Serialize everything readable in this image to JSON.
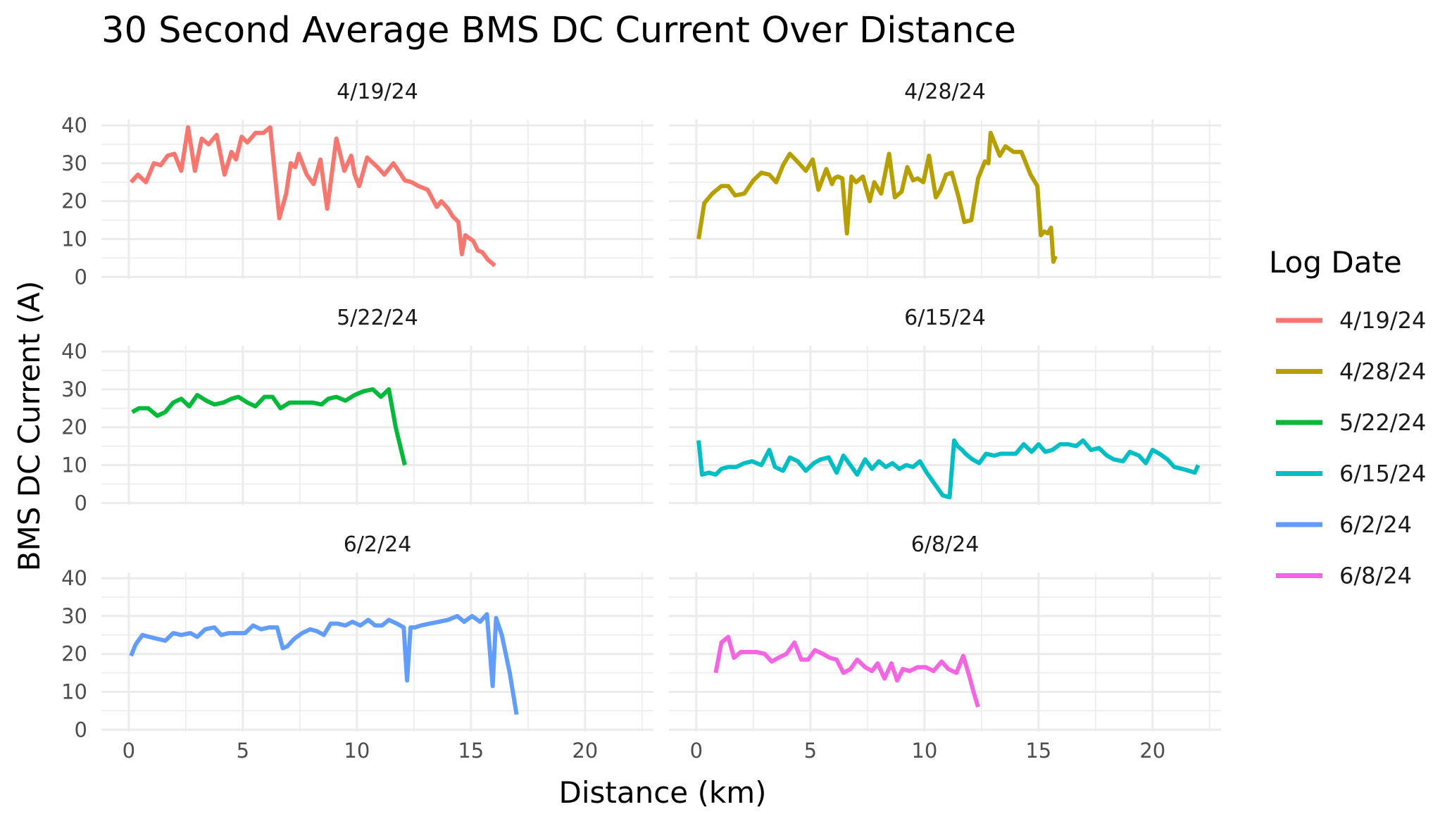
{
  "chart_data": {
    "type": "line",
    "title": "30 Second Average BMS DC Current Over Distance",
    "xlabel": "Distance (km)",
    "ylabel": "BMS DC Current (A)",
    "xlim": [
      -1.2,
      23
    ],
    "ylim": [
      -0.5,
      41.5
    ],
    "x_ticks": [
      0,
      5,
      10,
      15,
      20
    ],
    "y_ticks": [
      0,
      10,
      20,
      30,
      40
    ],
    "grid": true,
    "facet_layout": "3 rows x 2 columns",
    "legend": {
      "title": "Log Date",
      "position": "right"
    },
    "series": [
      {
        "name": "4/19/24",
        "color": "#F8766D",
        "x": [
          0.1,
          0.4,
          0.75,
          1.1,
          1.4,
          1.7,
          2.0,
          2.3,
          2.6,
          2.9,
          3.2,
          3.5,
          3.85,
          4.2,
          4.5,
          4.7,
          4.95,
          5.2,
          5.55,
          5.9,
          6.2,
          6.6,
          6.9,
          7.1,
          7.3,
          7.45,
          7.8,
          8.1,
          8.4,
          8.7,
          9.1,
          9.45,
          9.75,
          9.9,
          10.1,
          10.45,
          10.9,
          11.2,
          11.6,
          12.1,
          12.4,
          12.7,
          13.1,
          13.5,
          13.7,
          14.0,
          14.2,
          14.45,
          14.6,
          14.75,
          15.1,
          15.3,
          15.5,
          15.75,
          16.05
        ],
        "y": [
          25,
          27,
          25,
          30,
          29.5,
          32,
          32.5,
          28,
          39.5,
          28,
          36.5,
          35,
          37.5,
          27,
          33,
          31,
          37,
          35.5,
          38,
          38,
          39.5,
          15.5,
          22,
          30,
          29,
          32.5,
          27,
          24.5,
          31,
          18,
          36.5,
          28,
          32,
          27,
          24,
          31.5,
          29,
          27,
          30,
          25.5,
          25,
          24,
          23,
          18.5,
          20,
          18,
          16,
          14.5,
          6,
          11,
          9.5,
          7,
          6.5,
          4.5,
          3
        ]
      },
      {
        "name": "4/28/24",
        "color": "#B79F00",
        "x": [
          0.1,
          0.35,
          0.7,
          1.1,
          1.4,
          1.7,
          2.1,
          2.5,
          2.85,
          3.2,
          3.5,
          3.8,
          4.1,
          4.5,
          4.8,
          4.95,
          5.1,
          5.35,
          5.7,
          5.95,
          6.05,
          6.2,
          6.4,
          6.6,
          6.8,
          7.0,
          7.3,
          7.6,
          7.8,
          8.1,
          8.45,
          8.7,
          9.0,
          9.25,
          9.5,
          9.7,
          9.95,
          10.2,
          10.5,
          10.7,
          10.95,
          11.2,
          11.5,
          11.75,
          12.05,
          12.35,
          12.65,
          12.8,
          12.9,
          13.3,
          13.55,
          13.9,
          14.25,
          14.65,
          14.95,
          15.1,
          15.25,
          15.4,
          15.55,
          15.65,
          15.75
        ],
        "y": [
          10,
          19.5,
          22,
          24,
          24,
          21.5,
          22,
          25.5,
          27.5,
          27,
          25,
          29.5,
          32.5,
          30,
          28,
          29.5,
          31,
          23,
          28.5,
          24.5,
          26,
          26.5,
          26,
          11.5,
          26.5,
          25,
          26.5,
          20,
          25,
          22,
          32.5,
          21,
          22.5,
          29,
          25.5,
          26,
          25,
          32,
          21,
          23,
          27,
          27.5,
          21,
          14.5,
          15,
          26,
          30.5,
          30,
          38,
          32,
          34.5,
          33,
          33,
          27,
          24,
          11,
          12,
          11.5,
          13,
          4,
          5.5
        ]
      },
      {
        "name": "5/22/24",
        "color": "#00BA38",
        "x": [
          0.15,
          0.45,
          0.85,
          1.25,
          1.6,
          1.95,
          2.3,
          2.65,
          3.0,
          3.4,
          3.75,
          4.15,
          4.5,
          4.8,
          5.2,
          5.55,
          5.95,
          6.3,
          6.65,
          7.05,
          7.4,
          7.7,
          8.05,
          8.45,
          8.75,
          9.1,
          9.5,
          9.9,
          10.3,
          10.7,
          11.05,
          11.4,
          11.7,
          11.9,
          12.1
        ],
        "y": [
          24,
          25,
          25,
          23,
          24,
          26.5,
          27.5,
          25.5,
          28.5,
          27,
          26,
          26.5,
          27.5,
          28,
          26.5,
          25.5,
          28,
          28,
          25,
          26.5,
          26.5,
          26.5,
          26.5,
          26,
          27.5,
          28,
          27,
          28.5,
          29.5,
          30,
          28,
          30,
          20,
          15,
          10
        ]
      },
      {
        "name": "6/15/24",
        "color": "#00BFC4",
        "x": [
          0.1,
          0.25,
          0.55,
          0.85,
          1.1,
          1.4,
          1.75,
          2.1,
          2.45,
          2.85,
          3.2,
          3.45,
          3.8,
          4.1,
          4.45,
          4.8,
          5.15,
          5.45,
          5.8,
          6.15,
          6.45,
          6.75,
          7.05,
          7.4,
          7.7,
          8.0,
          8.3,
          8.6,
          8.9,
          9.2,
          9.5,
          9.8,
          10.1,
          10.45,
          10.8,
          11.1,
          11.3,
          11.45,
          11.55,
          11.65,
          11.8,
          12.1,
          12.4,
          12.7,
          13.05,
          13.35,
          13.7,
          14.0,
          14.35,
          14.7,
          15.0,
          15.3,
          15.6,
          15.95,
          16.3,
          16.65,
          16.95,
          17.3,
          17.65,
          18.0,
          18.3,
          18.7,
          19.0,
          19.4,
          19.7,
          20.0,
          20.3,
          20.65,
          20.95,
          21.3,
          21.6,
          21.85,
          22.0
        ],
        "y": [
          16.5,
          7.5,
          8,
          7.5,
          9,
          9.5,
          9.5,
          10.5,
          11,
          10,
          14,
          9.5,
          8.5,
          12,
          11,
          8.5,
          10.5,
          11.5,
          12,
          8,
          12.5,
          10,
          7.5,
          11.5,
          9,
          11,
          9.5,
          10.5,
          9,
          10,
          9.5,
          11,
          8,
          5,
          2,
          1.5,
          16.5,
          15,
          14.5,
          14,
          13,
          11.5,
          10.5,
          13,
          12.5,
          13,
          13,
          13,
          15.5,
          13.5,
          15.5,
          13.5,
          14,
          15.5,
          15.5,
          15,
          16.5,
          14,
          14.5,
          12.5,
          11.5,
          11,
          13.5,
          12.5,
          10.5,
          14,
          13,
          11.5,
          9.5,
          9,
          8.5,
          8,
          10
        ]
      },
      {
        "name": "6/2/24",
        "color": "#619CFF",
        "x": [
          0.1,
          0.3,
          0.6,
          0.9,
          1.25,
          1.6,
          1.95,
          2.3,
          2.7,
          3.0,
          3.35,
          3.75,
          4.05,
          4.4,
          4.75,
          5.1,
          5.45,
          5.8,
          6.15,
          6.5,
          6.75,
          6.95,
          7.25,
          7.6,
          7.95,
          8.25,
          8.55,
          8.85,
          9.15,
          9.5,
          9.8,
          10.15,
          10.5,
          10.8,
          11.1,
          11.4,
          11.75,
          12.05,
          12.2,
          12.35,
          12.55,
          12.8,
          13.2,
          13.6,
          14.0,
          14.4,
          14.7,
          15.05,
          15.4,
          15.7,
          15.95,
          16.1,
          16.35,
          16.7,
          17.0
        ],
        "y": [
          19.5,
          22.5,
          25,
          24.5,
          24,
          23.5,
          25.5,
          25,
          25.5,
          24.5,
          26.5,
          27,
          25,
          25.5,
          25.5,
          25.5,
          27.5,
          26.5,
          27,
          27,
          21.5,
          22,
          24,
          25.5,
          26.5,
          26,
          25,
          28,
          28,
          27.5,
          28.5,
          27.5,
          29,
          27.5,
          27.5,
          29,
          28,
          27,
          13,
          27,
          27,
          27.5,
          28,
          28.5,
          29,
          30,
          28.5,
          30,
          28.5,
          30.5,
          11.5,
          29.5,
          25,
          15,
          4
        ]
      },
      {
        "name": "6/8/24",
        "color": "#F564E3",
        "x": [
          0.85,
          1.1,
          1.4,
          1.65,
          1.95,
          2.3,
          2.65,
          3.0,
          3.3,
          3.6,
          3.95,
          4.3,
          4.6,
          4.9,
          5.2,
          5.55,
          5.85,
          6.15,
          6.45,
          6.75,
          7.05,
          7.4,
          7.7,
          7.95,
          8.25,
          8.55,
          8.8,
          9.05,
          9.35,
          9.7,
          10.05,
          10.4,
          10.75,
          11.05,
          11.4,
          11.7,
          11.95,
          12.15,
          12.35
        ],
        "y": [
          15,
          23,
          24.5,
          19,
          20.5,
          20.5,
          20.5,
          20,
          18,
          19,
          20,
          23,
          18.5,
          18.5,
          21,
          20,
          19,
          18.5,
          15,
          16,
          18.5,
          16.5,
          15.5,
          17.5,
          13.5,
          17.5,
          13,
          16,
          15.5,
          16.5,
          16.5,
          15.5,
          18,
          16,
          15,
          19.5,
          14.5,
          10,
          6
        ]
      }
    ]
  }
}
